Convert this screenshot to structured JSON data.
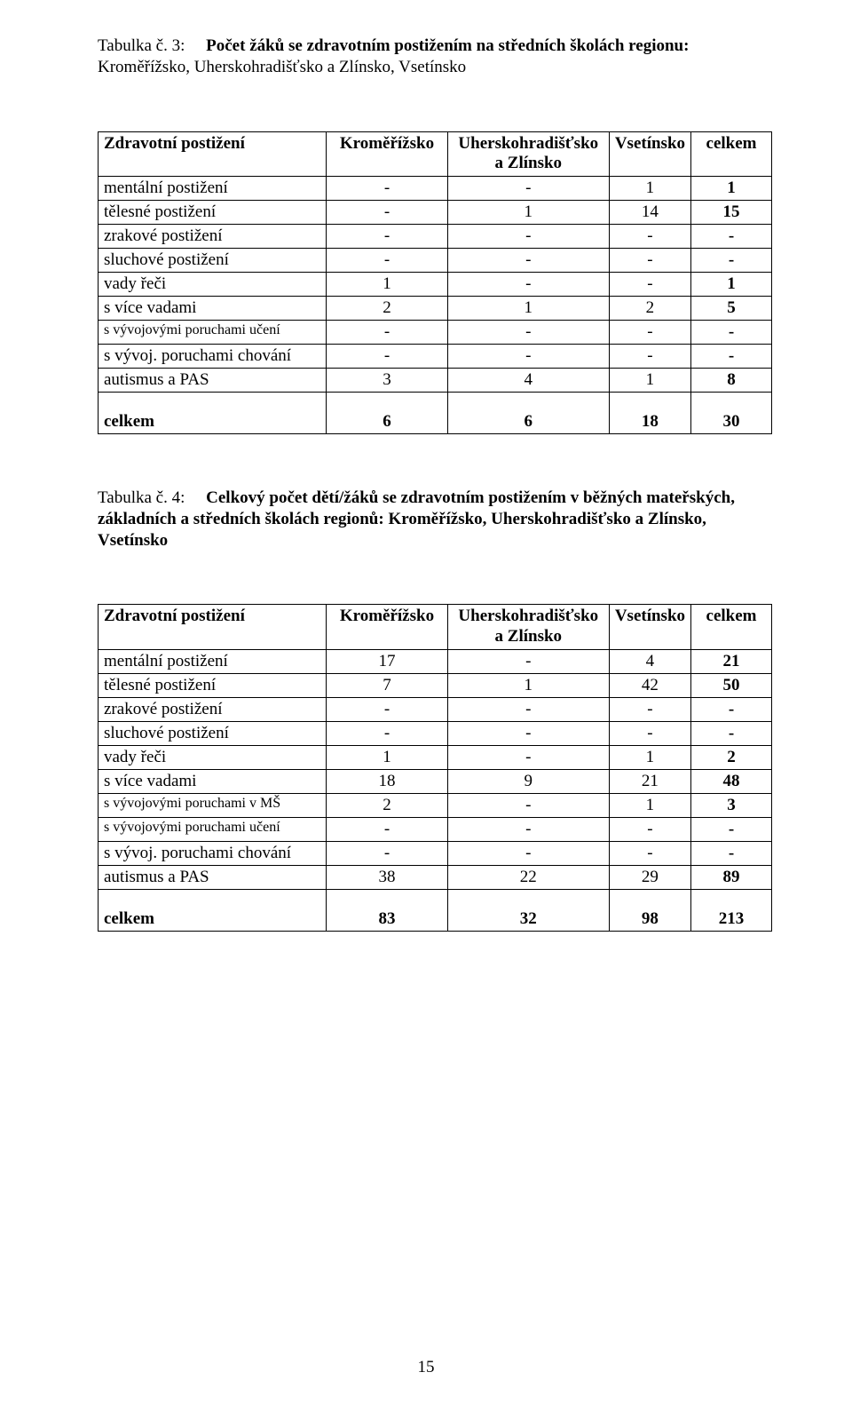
{
  "table3": {
    "title_label": "Tabulka č. 3:",
    "title_bold": "Počet žáků se zdravotním  postižením  na středních školách regionu:",
    "title_rest": "Kroměřížsko, Uherskohradišťsko a Zlínsko, Vsetínsko",
    "header": {
      "c1": "Zdravotní postižení",
      "c2": "Kroměřížsko",
      "c3_l1": "Uherskohradišťsko",
      "c3_l2": "a Zlínsko",
      "c4": "Vsetínsko",
      "c5": "celkem"
    },
    "rows": [
      {
        "label": "mentální postižení",
        "a": "-",
        "b": "-",
        "c": "1",
        "d": "1"
      },
      {
        "label": "tělesné postižení",
        "a": "-",
        "b": "1",
        "c": "14",
        "d": "15"
      },
      {
        "label": "zrakové postižení",
        "a": "-",
        "b": "-",
        "c": "-",
        "d": "-"
      },
      {
        "label": "sluchové postižení",
        "a": "-",
        "b": "-",
        "c": "-",
        "d": "-"
      },
      {
        "label": "vady řeči",
        "a": "1",
        "b": "-",
        "c": "-",
        "d": "1"
      },
      {
        "label": "s více vadami",
        "a": "2",
        "b": "1",
        "c": "2",
        "d": "5"
      },
      {
        "label": "s vývojovými poruchami učení",
        "a": "-",
        "b": "-",
        "c": "-",
        "d": "-"
      },
      {
        "label": "s vývoj. poruchami chování",
        "a": "-",
        "b": "-",
        "c": "-",
        "d": "-"
      },
      {
        "label": "autismus a PAS",
        "a": "3",
        "b": "4",
        "c": "1",
        "d": "8"
      }
    ],
    "total": {
      "label": "celkem",
      "a": "6",
      "b": "6",
      "c": "18",
      "d": "30"
    },
    "row_font_sizes": [
      19,
      19,
      19,
      19,
      19,
      19,
      16,
      19,
      19
    ]
  },
  "table4": {
    "title_label": "Tabulka č. 4:",
    "title_bold": "Celkový počet dětí/žáků se zdravotním postižením  v běžných mateřských,",
    "title_rest_l1": "základních a  středních školách regionů: Kroměřížsko, Uherskohradišťsko a Zlínsko,",
    "title_rest_l2": "Vsetínsko",
    "header": {
      "c1": "Zdravotní postižení",
      "c2": "Kroměřížsko",
      "c3_l1": "Uherskohradišťsko",
      "c3_l2": "a Zlínsko",
      "c4": "Vsetínsko",
      "c5": "celkem"
    },
    "rows": [
      {
        "label": "mentální postižení",
        "a": "17",
        "b": "-",
        "c": "4",
        "d": "21"
      },
      {
        "label": "tělesné postižení",
        "a": "7",
        "b": "1",
        "c": "42",
        "d": "50"
      },
      {
        "label": "zrakové postižení",
        "a": "-",
        "b": "-",
        "c": "-",
        "d": "-"
      },
      {
        "label": "sluchové postižení",
        "a": "-",
        "b": "-",
        "c": "-",
        "d": "-"
      },
      {
        "label": "vady řeči",
        "a": "1",
        "b": "-",
        "c": "1",
        "d": "2"
      },
      {
        "label": "s více vadami",
        "a": "18",
        "b": "9",
        "c": "21",
        "d": "48"
      },
      {
        "label": "s vývojovými poruchami v MŠ",
        "a": "2",
        "b": "-",
        "c": "1",
        "d": "3"
      },
      {
        "label": "s vývojovými poruchami učení",
        "a": "-",
        "b": "-",
        "c": "-",
        "d": "-"
      },
      {
        "label": "s vývoj. poruchami chování",
        "a": "-",
        "b": "-",
        "c": "-",
        "d": "-"
      },
      {
        "label": "autismus a PAS",
        "a": "38",
        "b": "22",
        "c": "29",
        "d": "89"
      }
    ],
    "total": {
      "label": "celkem",
      "a": "83",
      "b": "32",
      "c": "98",
      "d": "213"
    },
    "row_font_sizes": [
      19,
      19,
      19,
      19,
      19,
      19,
      16,
      16,
      19,
      19
    ]
  },
  "page_number": "15"
}
